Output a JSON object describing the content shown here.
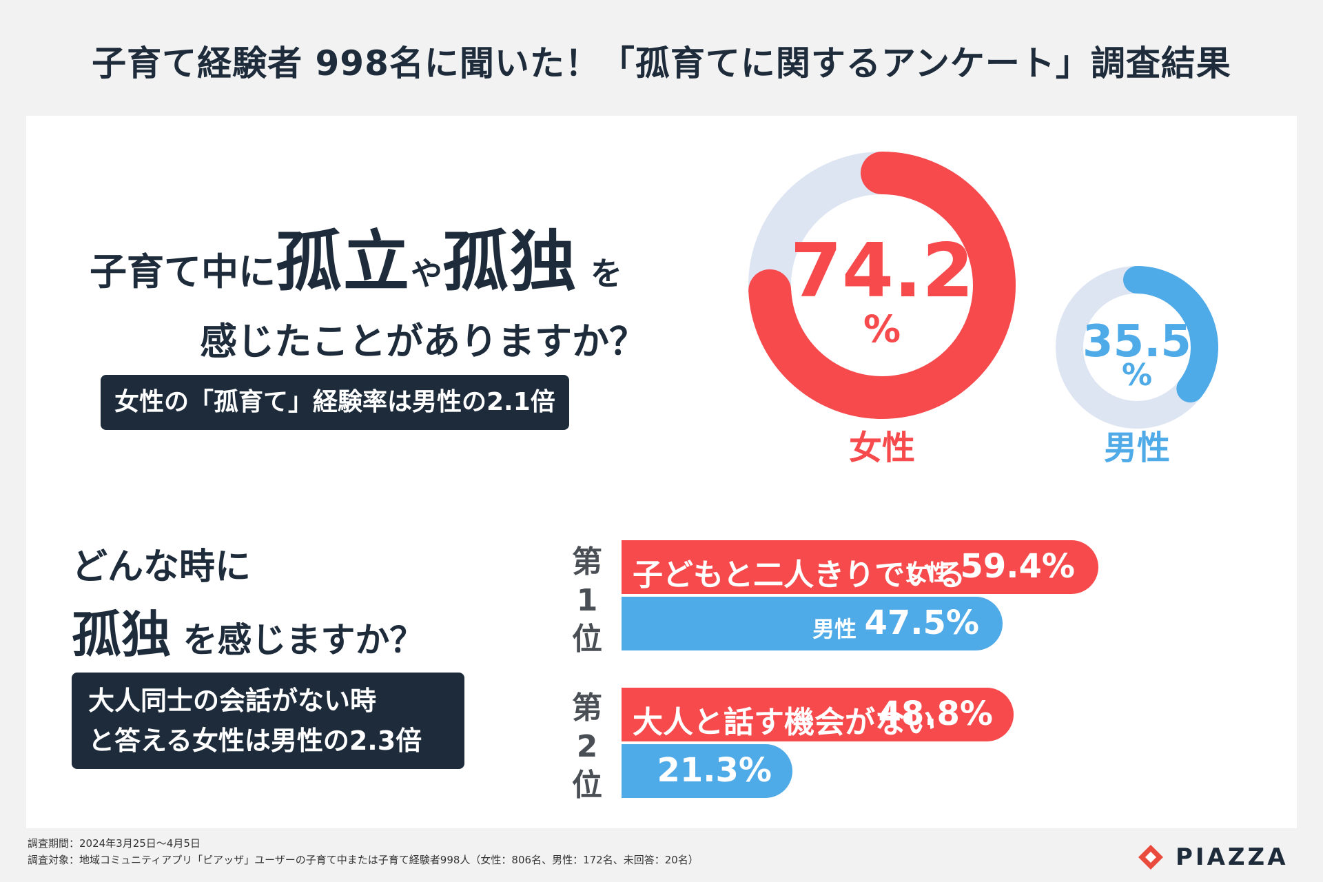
{
  "title": "子育て経験者 998名に聞いた！「孤育てに関するアンケート」調査結果",
  "q1": {
    "pre": "子育て中に",
    "w1": "孤立",
    "mid": "や",
    "w2": "孤独",
    "post": "を",
    "line2": "感じたことがありますか？",
    "note": "女性の「孤育て」経験率は男性の2.1倍"
  },
  "colors": {
    "female": "#f74a4c",
    "male": "#4faae8",
    "track": "#dde5f3",
    "dark": "#1d2b3a"
  },
  "q2": {
    "l1": "どんな時に",
    "big": "孤独",
    "post": "を感じますか？",
    "note_l1": "大人同士の会話がない時",
    "note_l2": "と答える女性は男性の2.3倍"
  },
  "footer": {
    "period": "調査期間：2024年3月25日〜4月5日",
    "target": "調査対象：地域コミュニティアプリ「ピアッザ」ユーザーの子育て中または子育て経験者998人（女性：806名、男性：172名、未回答：20名）"
  },
  "logo": {
    "text": "PIAZZA"
  },
  "chart_data": [
    {
      "type": "pie",
      "title": "",
      "series": [
        {
          "name": "女性",
          "value": 74.2,
          "value_label": "74.2",
          "unit": "%"
        },
        {
          "name": "男性",
          "value": 35.5,
          "value_label": "35.5",
          "unit": "%"
        }
      ]
    },
    {
      "type": "bar",
      "orientation": "horizontal",
      "ranks": [
        {
          "rank_label": "第 1 位",
          "chars": [
            "第",
            "1",
            "位"
          ],
          "category": "子どもと二人きりでいる",
          "female": {
            "sex_label": "女性",
            "value": 59.4,
            "value_label": "59.4%"
          },
          "male": {
            "sex_label": "男性",
            "value": 47.5,
            "value_label": "47.5%"
          }
        },
        {
          "rank_label": "第 2 位",
          "chars": [
            "第",
            "2",
            "位"
          ],
          "category": "大人と話す機会がない",
          "female": {
            "sex_label": "",
            "value": 48.8,
            "value_label": "48.8%"
          },
          "male": {
            "sex_label": "",
            "value": 21.3,
            "value_label": "21.3%"
          }
        }
      ]
    }
  ]
}
